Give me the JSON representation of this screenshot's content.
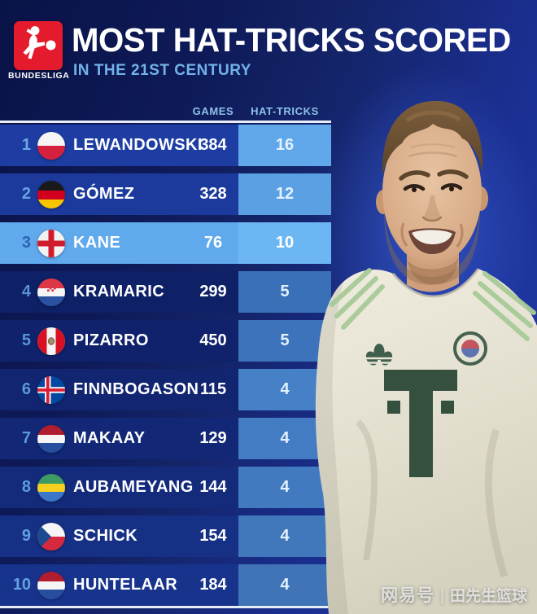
{
  "header": {
    "league_wordmark": "BUNDESLIGA",
    "title": "MOST HAT-TRICKS SCORED",
    "subtitle": "IN THE 21ST CENTURY"
  },
  "table": {
    "columns": {
      "games": "GAMES",
      "hattricks": "HAT-TRICKS"
    },
    "rows": [
      {
        "rank": "1",
        "flag": "poland",
        "player": "LEWANDOWSKI",
        "games": "384",
        "hattricks": "16",
        "highlight": false
      },
      {
        "rank": "2",
        "flag": "germany",
        "player": "GÓMEZ",
        "games": "328",
        "hattricks": "12",
        "highlight": false
      },
      {
        "rank": "3",
        "flag": "england",
        "player": "KANE",
        "games": "76",
        "hattricks": "10",
        "highlight": true
      },
      {
        "rank": "4",
        "flag": "croatia",
        "player": "KRAMARIC",
        "games": "299",
        "hattricks": "5",
        "highlight": false
      },
      {
        "rank": "5",
        "flag": "peru",
        "player": "PIZARRO",
        "games": "450",
        "hattricks": "5",
        "highlight": false
      },
      {
        "rank": "6",
        "flag": "iceland",
        "player": "FINNBOGASON",
        "games": "115",
        "hattricks": "4",
        "highlight": false
      },
      {
        "rank": "7",
        "flag": "netherlands",
        "player": "MAKAAY",
        "games": "129",
        "hattricks": "4",
        "highlight": false
      },
      {
        "rank": "8",
        "flag": "gabon",
        "player": "AUBAMEYANG",
        "games": "144",
        "hattricks": "4",
        "highlight": false
      },
      {
        "rank": "9",
        "flag": "czech-republic",
        "player": "SCHICK",
        "games": "154",
        "hattricks": "4",
        "highlight": false
      },
      {
        "rank": "10",
        "flag": "netherlands",
        "player": "HUNTELAAR",
        "games": "184",
        "hattricks": "4",
        "highlight": false
      }
    ]
  },
  "colors": {
    "bundesliga_red": "#e31b2d",
    "highlight_row_blue": "#5fa9ec",
    "subtitle_blue": "#71b3e8",
    "header_label_blue": "#8ec0ea"
  },
  "watermark": {
    "brand": "网易号",
    "separator": "|",
    "account": "田先生篮球"
  }
}
